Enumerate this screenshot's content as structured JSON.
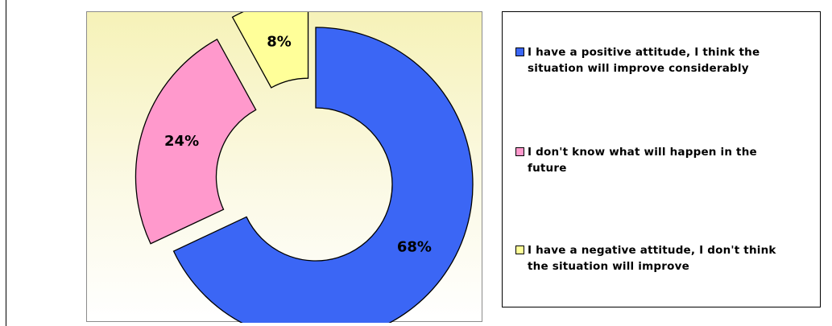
{
  "chart_data": {
    "type": "pie",
    "subtype": "exploded-doughnut",
    "categories": [
      "I have a positive attitude, I think the situation will improve considerably",
      "I don't know what will happen in the future",
      "I have a negative attitude, I don't think the situation will improve"
    ],
    "values": [
      68,
      24,
      8
    ],
    "data_labels": [
      "68%",
      "24%",
      "8%"
    ],
    "colors": [
      "#3b66f5",
      "#ff99cc",
      "#ffff99"
    ],
    "legend_position": "right",
    "title": ""
  },
  "legend": {
    "items": [
      {
        "label": "I have a positive attitude, I think the situation will improve considerably",
        "line1": "I have a positive attitude, I think the",
        "line2": "situation will improve considerably",
        "color": "#3b66f5"
      },
      {
        "label": "I don't know what will happen in the future",
        "line1": "I don't know what will happen in the",
        "line2": "future",
        "color": "#ff99cc"
      },
      {
        "label": "I have a negative attitude, I don't think the situation will improve",
        "line1": "I have a negative attitude, I don't think",
        "line2": "the situation will improve",
        "color": "#ffff99"
      }
    ]
  }
}
